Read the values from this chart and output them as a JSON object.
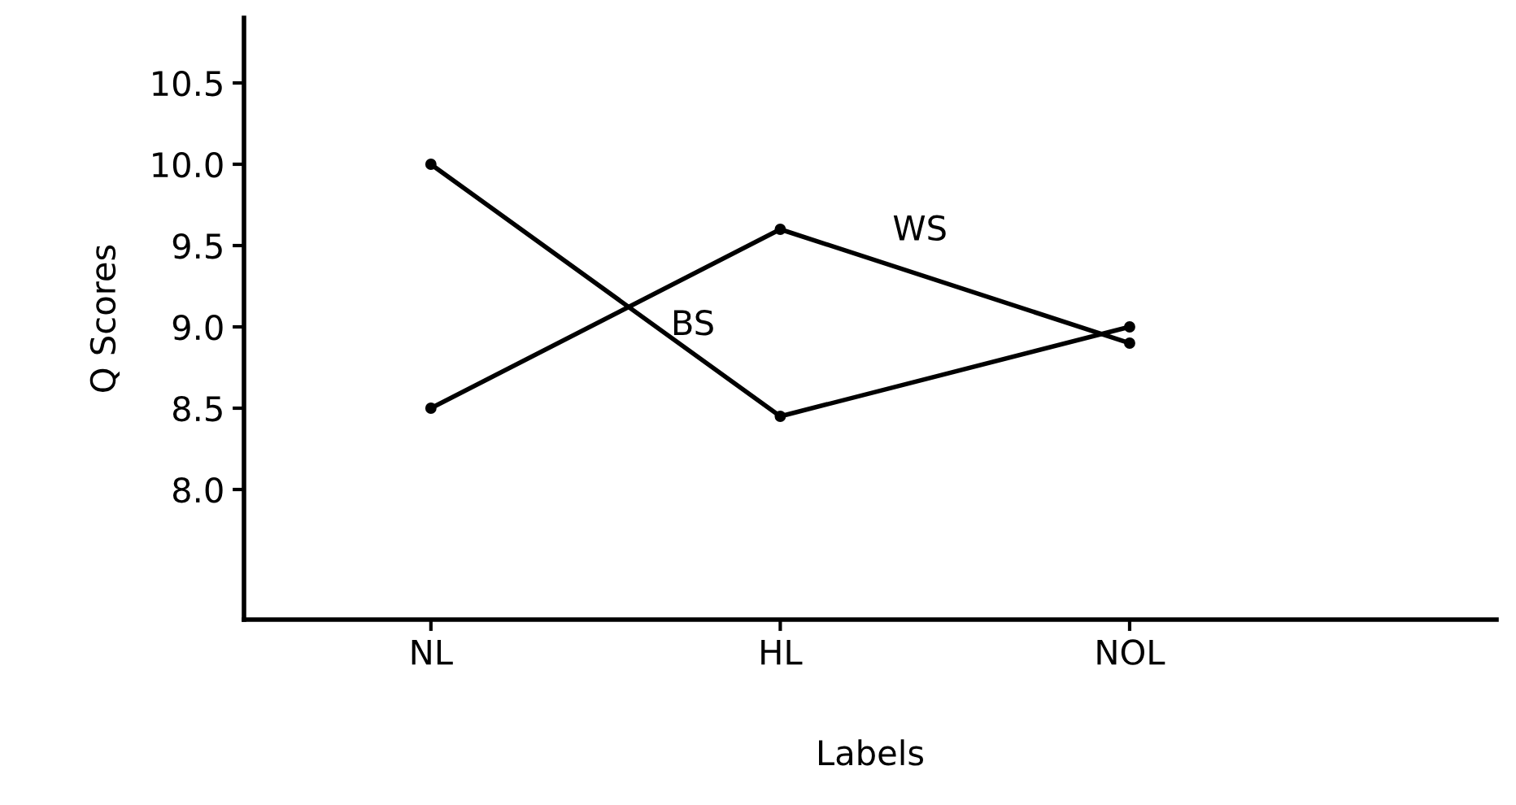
{
  "chart_data": {
    "type": "line",
    "xlabel": "Labels",
    "ylabel": "Q Scores",
    "categories": [
      "NL",
      "HL",
      "NOL"
    ],
    "series": [
      {
        "name": "WS",
        "color": "#000000",
        "values": [
          8.5,
          9.6,
          8.9
        ]
      },
      {
        "name": "BS",
        "color": "#000000",
        "values": [
          10.0,
          8.45,
          9.0
        ]
      }
    ],
    "ylim": [
      7.2,
      10.9
    ],
    "yticks": [
      {
        "value": 8,
        "label": "8.0"
      },
      8.5,
      {
        "value": 9,
        "label": "9.0"
      },
      9.5,
      {
        "value": 10,
        "label": "10.0"
      },
      10.5
    ],
    "marker": "circle",
    "line_style": "solid",
    "grid": false,
    "legend": false
  }
}
